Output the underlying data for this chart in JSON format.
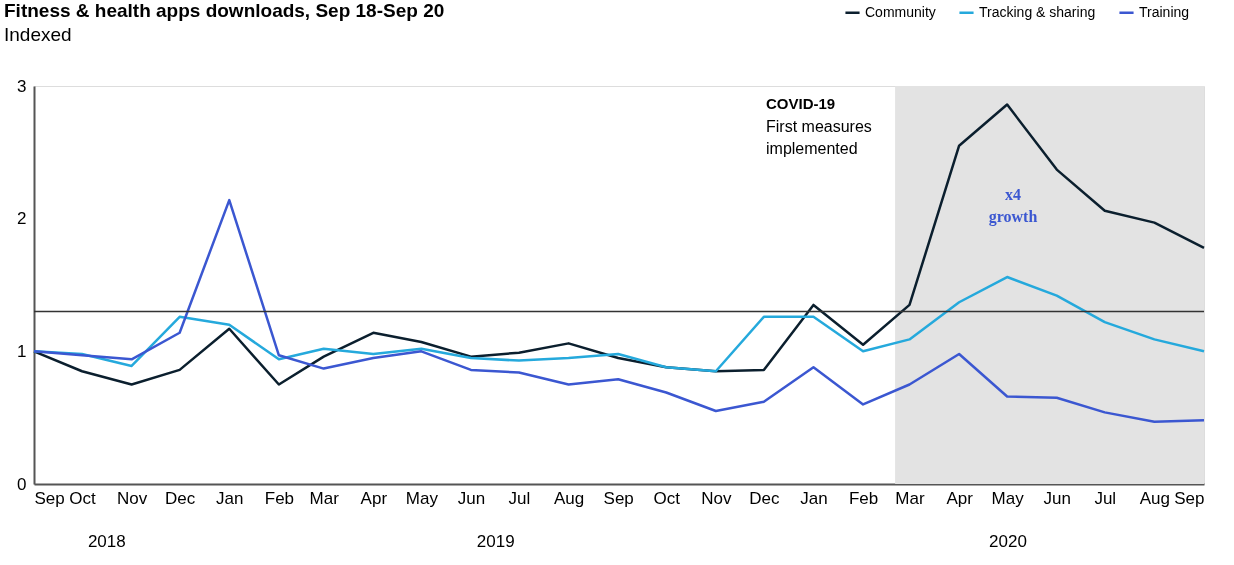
{
  "chart_data": {
    "type": "line",
    "title": "Fitness & health apps downloads, Sep 18-Sep 20",
    "subtitle": "Indexed",
    "x": [
      "2018-09",
      "2018-10",
      "2018-11",
      "2018-12",
      "2019-01",
      "2019-02",
      "2019-03",
      "2019-04",
      "2019-05",
      "2019-06",
      "2019-07",
      "2019-08",
      "2019-09",
      "2019-10",
      "2019-11",
      "2019-12",
      "2020-01",
      "2020-02",
      "2020-03",
      "2020-04",
      "2020-05",
      "2020-06",
      "2020-07",
      "2020-08",
      "2020-09"
    ],
    "xlim": [
      "2018-09",
      "2020-09"
    ],
    "xticks": [
      {
        "value": "2018-09",
        "label": "Sep"
      },
      {
        "value": "2018-10",
        "label": "Oct"
      },
      {
        "value": "2018-11",
        "label": "Nov"
      },
      {
        "value": "2018-12",
        "label": "Dec"
      },
      {
        "value": "2019-01",
        "label": "Jan"
      },
      {
        "value": "2019-02",
        "label": "Feb"
      },
      {
        "value": "2019-03",
        "label": "Mar"
      },
      {
        "value": "2019-04",
        "label": "Apr"
      },
      {
        "value": "2019-05",
        "label": "May"
      },
      {
        "value": "2019-06",
        "label": "Jun"
      },
      {
        "value": "2019-07",
        "label": "Jul"
      },
      {
        "value": "2019-08",
        "label": "Aug"
      },
      {
        "value": "2019-09",
        "label": "Sep"
      },
      {
        "value": "2019-10",
        "label": "Oct"
      },
      {
        "value": "2019-11",
        "label": "Nov"
      },
      {
        "value": "2019-12",
        "label": "Dec"
      },
      {
        "value": "2020-01",
        "label": "Jan"
      },
      {
        "value": "2020-02",
        "label": "Feb"
      },
      {
        "value": "2020-03",
        "label": "Mar"
      },
      {
        "value": "2020-04",
        "label": "Apr"
      },
      {
        "value": "2020-05",
        "label": "May"
      },
      {
        "value": "2020-06",
        "label": "Jun"
      },
      {
        "value": "2020-07",
        "label": "Jul"
      },
      {
        "value": "2020-08",
        "label": "Aug"
      },
      {
        "value": "2020-09",
        "label": "Sep"
      }
    ],
    "ylim": [
      0,
      3
    ],
    "yticks": [
      0,
      1,
      2,
      3
    ],
    "series": [
      {
        "name": "Community",
        "color": "#0b1f2e",
        "values": [
          1.0,
          0.85,
          0.75,
          0.86,
          1.17,
          0.75,
          0.96,
          1.14,
          1.07,
          0.96,
          0.99,
          1.06,
          0.95,
          0.88,
          0.85,
          0.86,
          1.35,
          1.05,
          1.35,
          2.55,
          2.86,
          2.37,
          2.06,
          1.97,
          1.78
        ]
      },
      {
        "name": "Tracking & sharing",
        "color": "#25a9dc",
        "values": [
          1.0,
          0.98,
          0.89,
          1.26,
          1.2,
          0.94,
          1.02,
          0.98,
          1.02,
          0.95,
          0.93,
          0.95,
          0.98,
          0.88,
          0.85,
          1.26,
          1.26,
          1.0,
          1.09,
          1.37,
          1.56,
          1.42,
          1.22,
          1.09,
          1.0
        ]
      },
      {
        "name": "Training",
        "color": "#3b57d1",
        "values": [
          1.0,
          0.97,
          0.94,
          1.14,
          2.14,
          0.97,
          0.87,
          0.95,
          1.0,
          0.86,
          0.84,
          0.75,
          0.79,
          0.69,
          0.55,
          0.62,
          0.88,
          0.6,
          0.75,
          0.98,
          0.66,
          0.65,
          0.54,
          0.47,
          0.48
        ]
      }
    ],
    "ref_lines": [
      {
        "axis": "y",
        "value": 1.3,
        "color": "#333333"
      }
    ],
    "bands": [
      {
        "axis": "x",
        "from": "2020-02-21",
        "to": "2020-09-01",
        "color": "#e3e3e3"
      }
    ],
    "annotations": [
      "COVID-19",
      "First measures implemented",
      "x4 growth",
      "2018",
      "2019",
      "2020"
    ],
    "legend": "top right",
    "grid": false,
    "marker": "none",
    "line_style": "solid"
  }
}
